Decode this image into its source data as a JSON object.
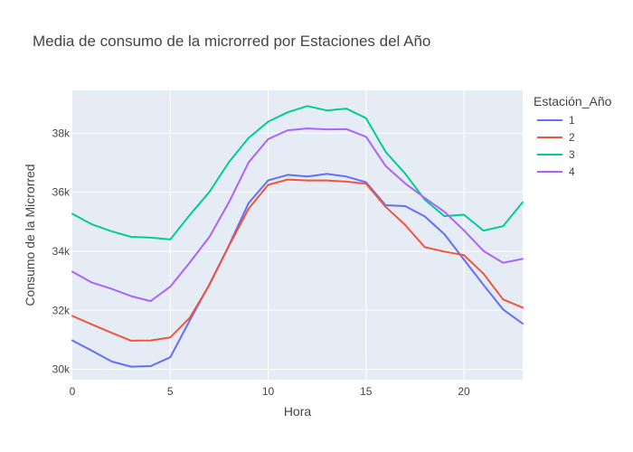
{
  "chart_data": {
    "type": "line",
    "title": "Media de consumo de la microrred por Estaciones del Año",
    "xlabel": "Hora",
    "ylabel": "Consumo de la Microrred",
    "xlim": [
      0,
      23
    ],
    "ylim": [
      29650,
      39450
    ],
    "x_ticks": [
      0,
      5,
      10,
      15,
      20
    ],
    "x_tick_labels": [
      "0",
      "5",
      "10",
      "15",
      "20"
    ],
    "y_ticks": [
      30000,
      32000,
      34000,
      36000,
      38000
    ],
    "y_tick_labels": [
      "30k",
      "32k",
      "34k",
      "36k",
      "38k"
    ],
    "grid": true,
    "legend": {
      "title": "Estación_Año",
      "position": "right"
    },
    "x": [
      0,
      1,
      2,
      3,
      4,
      5,
      6,
      7,
      8,
      9,
      10,
      11,
      12,
      13,
      14,
      15,
      16,
      17,
      18,
      19,
      20,
      21,
      22,
      23
    ],
    "series": [
      {
        "name": "1",
        "color": "#636efa",
        "values": [
          30980,
          30630,
          30270,
          30090,
          30110,
          30410,
          31660,
          32880,
          34200,
          35630,
          36400,
          36590,
          36530,
          36620,
          36530,
          36340,
          35560,
          35530,
          35180,
          34580,
          33720,
          32860,
          32030,
          31550
        ]
      },
      {
        "name": "2",
        "color": "#ef553b",
        "values": [
          31810,
          31520,
          31240,
          30970,
          30980,
          31080,
          31750,
          32860,
          34180,
          35440,
          36250,
          36430,
          36400,
          36400,
          36360,
          36290,
          35510,
          34890,
          34140,
          33990,
          33870,
          33240,
          32370,
          32090
        ]
      },
      {
        "name": "3",
        "color": "#00cc96",
        "values": [
          35270,
          34910,
          34680,
          34490,
          34460,
          34400,
          35230,
          36010,
          37020,
          37840,
          38390,
          38710,
          38920,
          38770,
          38830,
          38510,
          37370,
          36630,
          35750,
          35190,
          35240,
          34700,
          34850,
          35660
        ]
      },
      {
        "name": "4",
        "color": "#ab63fa",
        "values": [
          33310,
          32940,
          32730,
          32480,
          32310,
          32800,
          33620,
          34490,
          35660,
          37010,
          37800,
          38100,
          38160,
          38130,
          38140,
          37880,
          36890,
          36300,
          35810,
          35340,
          34710,
          34010,
          33610,
          33740
        ]
      }
    ]
  }
}
